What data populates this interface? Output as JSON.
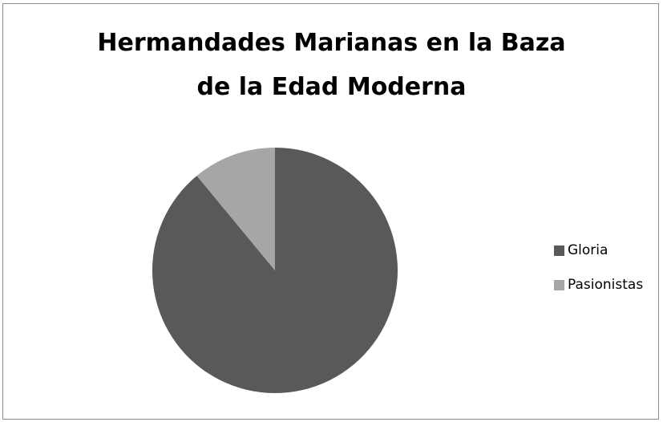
{
  "chart_data": {
    "type": "pie",
    "title": "Hermandades Marianas en la Baza\nde la Edad Moderna",
    "categories": [
      "Gloria",
      "Pasionistas"
    ],
    "values": [
      89,
      11
    ],
    "colors": [
      "#595959",
      "#a6a6a6"
    ],
    "legend_position": "right",
    "start_angle_deg": 0,
    "direction": "clockwise"
  }
}
